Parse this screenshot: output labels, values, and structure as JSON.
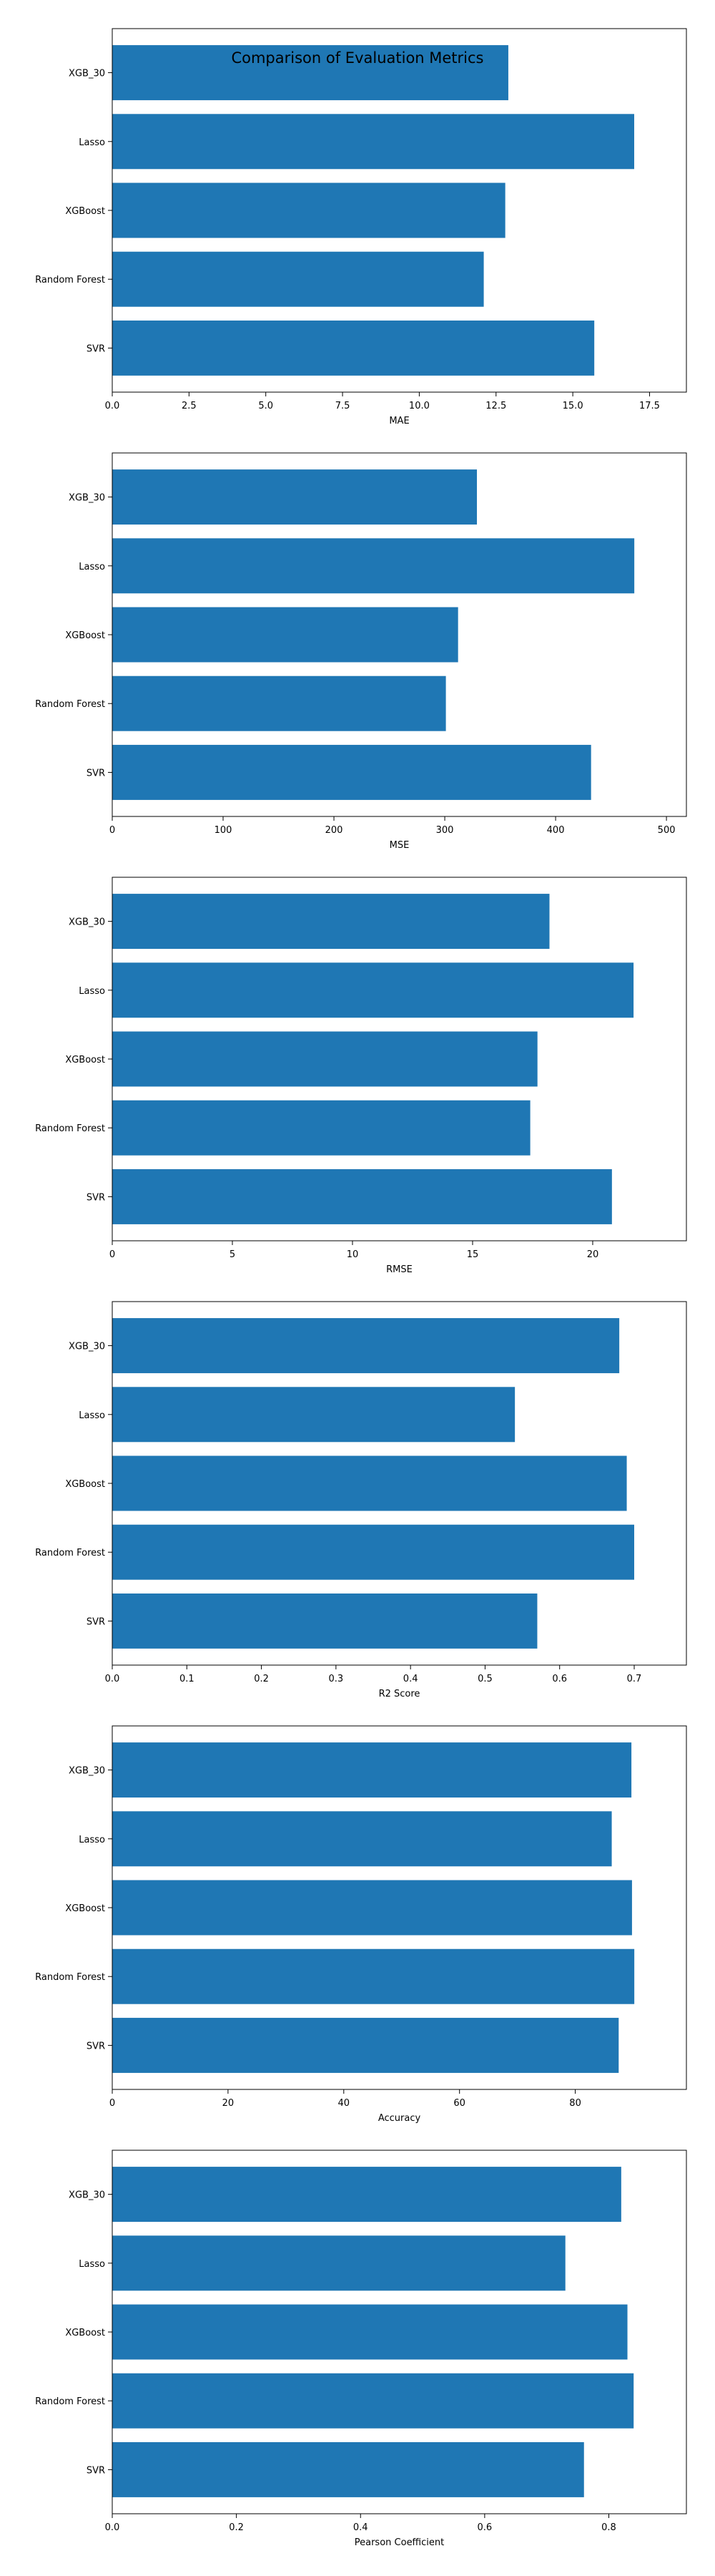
{
  "figure": {
    "title": "Comparison of Evaluation Metrics",
    "bar_color": "#1f77b4"
  },
  "chart_data": [
    {
      "type": "bar",
      "orientation": "horizontal",
      "categories": [
        "SVR",
        "Random Forest",
        "XGBoost",
        "Lasso",
        "XGB_30"
      ],
      "values": [
        15.7,
        12.1,
        12.8,
        17.0,
        12.9
      ],
      "xlabel": "MAE",
      "ylabel": "",
      "xlim": [
        0,
        18.7
      ],
      "xticks": [
        0,
        2.5,
        5,
        7.5,
        10,
        12.5,
        15,
        17.5
      ],
      "xtick_labels": [
        "0.0",
        "2.5",
        "5.0",
        "7.5",
        "10.0",
        "12.5",
        "15.0",
        "17.5"
      ],
      "grid": false
    },
    {
      "type": "bar",
      "orientation": "horizontal",
      "categories": [
        "SVR",
        "Random Forest",
        "XGBoost",
        "Lasso",
        "XGB_30"
      ],
      "values": [
        432,
        301,
        312,
        471,
        329
      ],
      "xlabel": "MSE",
      "ylabel": "",
      "xlim": [
        0,
        518
      ],
      "xticks": [
        0,
        100,
        200,
        300,
        400,
        500
      ],
      "xtick_labels": [
        "0",
        "100",
        "200",
        "300",
        "400",
        "500"
      ],
      "grid": false
    },
    {
      "type": "bar",
      "orientation": "horizontal",
      "categories": [
        "SVR",
        "Random Forest",
        "XGBoost",
        "Lasso",
        "XGB_30"
      ],
      "values": [
        20.8,
        17.4,
        17.7,
        21.7,
        18.2
      ],
      "xlabel": "RMSE",
      "ylabel": "",
      "xlim": [
        0,
        23.9
      ],
      "xticks": [
        0,
        5,
        10,
        15,
        20
      ],
      "xtick_labels": [
        "0",
        "5",
        "10",
        "15",
        "20"
      ],
      "grid": false
    },
    {
      "type": "bar",
      "orientation": "horizontal",
      "categories": [
        "SVR",
        "Random Forest",
        "XGBoost",
        "Lasso",
        "XGB_30"
      ],
      "values": [
        0.57,
        0.7,
        0.69,
        0.54,
        0.68
      ],
      "xlabel": "R2 Score",
      "ylabel": "",
      "xlim": [
        0,
        0.77
      ],
      "xticks": [
        0,
        0.1,
        0.2,
        0.3,
        0.4,
        0.5,
        0.6,
        0.7
      ],
      "xtick_labels": [
        "0.0",
        "0.1",
        "0.2",
        "0.3",
        "0.4",
        "0.5",
        "0.6",
        "0.7"
      ],
      "grid": false
    },
    {
      "type": "bar",
      "orientation": "horizontal",
      "categories": [
        "SVR",
        "Random Forest",
        "XGBoost",
        "Lasso",
        "XGB_30"
      ],
      "values": [
        87.5,
        90.2,
        89.8,
        86.3,
        89.7
      ],
      "xlabel": "Accuracy",
      "ylabel": "",
      "xlim": [
        0,
        99.2
      ],
      "xticks": [
        0,
        20,
        40,
        60,
        80
      ],
      "xtick_labels": [
        "0",
        "20",
        "40",
        "60",
        "80"
      ],
      "grid": false
    },
    {
      "type": "bar",
      "orientation": "horizontal",
      "categories": [
        "SVR",
        "Random Forest",
        "XGBoost",
        "Lasso",
        "XGB_30"
      ],
      "values": [
        0.76,
        0.84,
        0.83,
        0.73,
        0.82
      ],
      "xlabel": "Pearson Coefficient",
      "ylabel": "",
      "xlim": [
        0,
        0.925
      ],
      "xticks": [
        0,
        0.2,
        0.4,
        0.6,
        0.8
      ],
      "xtick_labels": [
        "0.0",
        "0.2",
        "0.4",
        "0.6",
        "0.8"
      ],
      "grid": false
    }
  ]
}
